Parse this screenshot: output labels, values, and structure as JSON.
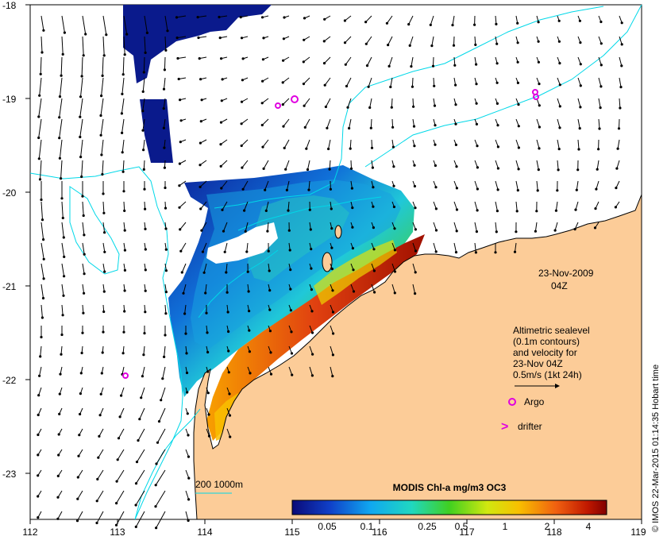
{
  "map": {
    "lon_ticks": [
      "112",
      "113",
      "114",
      "115",
      "116",
      "117",
      "118",
      "119"
    ],
    "lat_ticks": [
      "-18",
      "-19",
      "-20",
      "-21",
      "-22",
      "-23"
    ],
    "date_label": "23-Nov-2009",
    "time_label": "04Z",
    "legend_lines": [
      "Altimetric sealevel",
      "(0.1m contours)",
      "and velocity for",
      "23-Nov 04Z",
      "0.5m/s (1kt 24h)"
    ],
    "argo_label": "Argo",
    "drifter_label": "drifter",
    "drifter_symbol": ">",
    "bathy_label": "200  1000m",
    "colorbar_title": "MODIS Chl-a mg/m3 OC3",
    "colorbar_ticks": [
      "0.05",
      "0.1",
      "0.25",
      "0.5",
      "1",
      "2",
      "4"
    ],
    "credit": "© IMOS 22-Mar-2015 01:14:35 Hobart time",
    "colors": {
      "land": "#fccc98",
      "bathy": "#00d8e8",
      "argo": "#e000e0",
      "cloud_dark": "#0a1a8c",
      "coast": "#000000"
    }
  }
}
